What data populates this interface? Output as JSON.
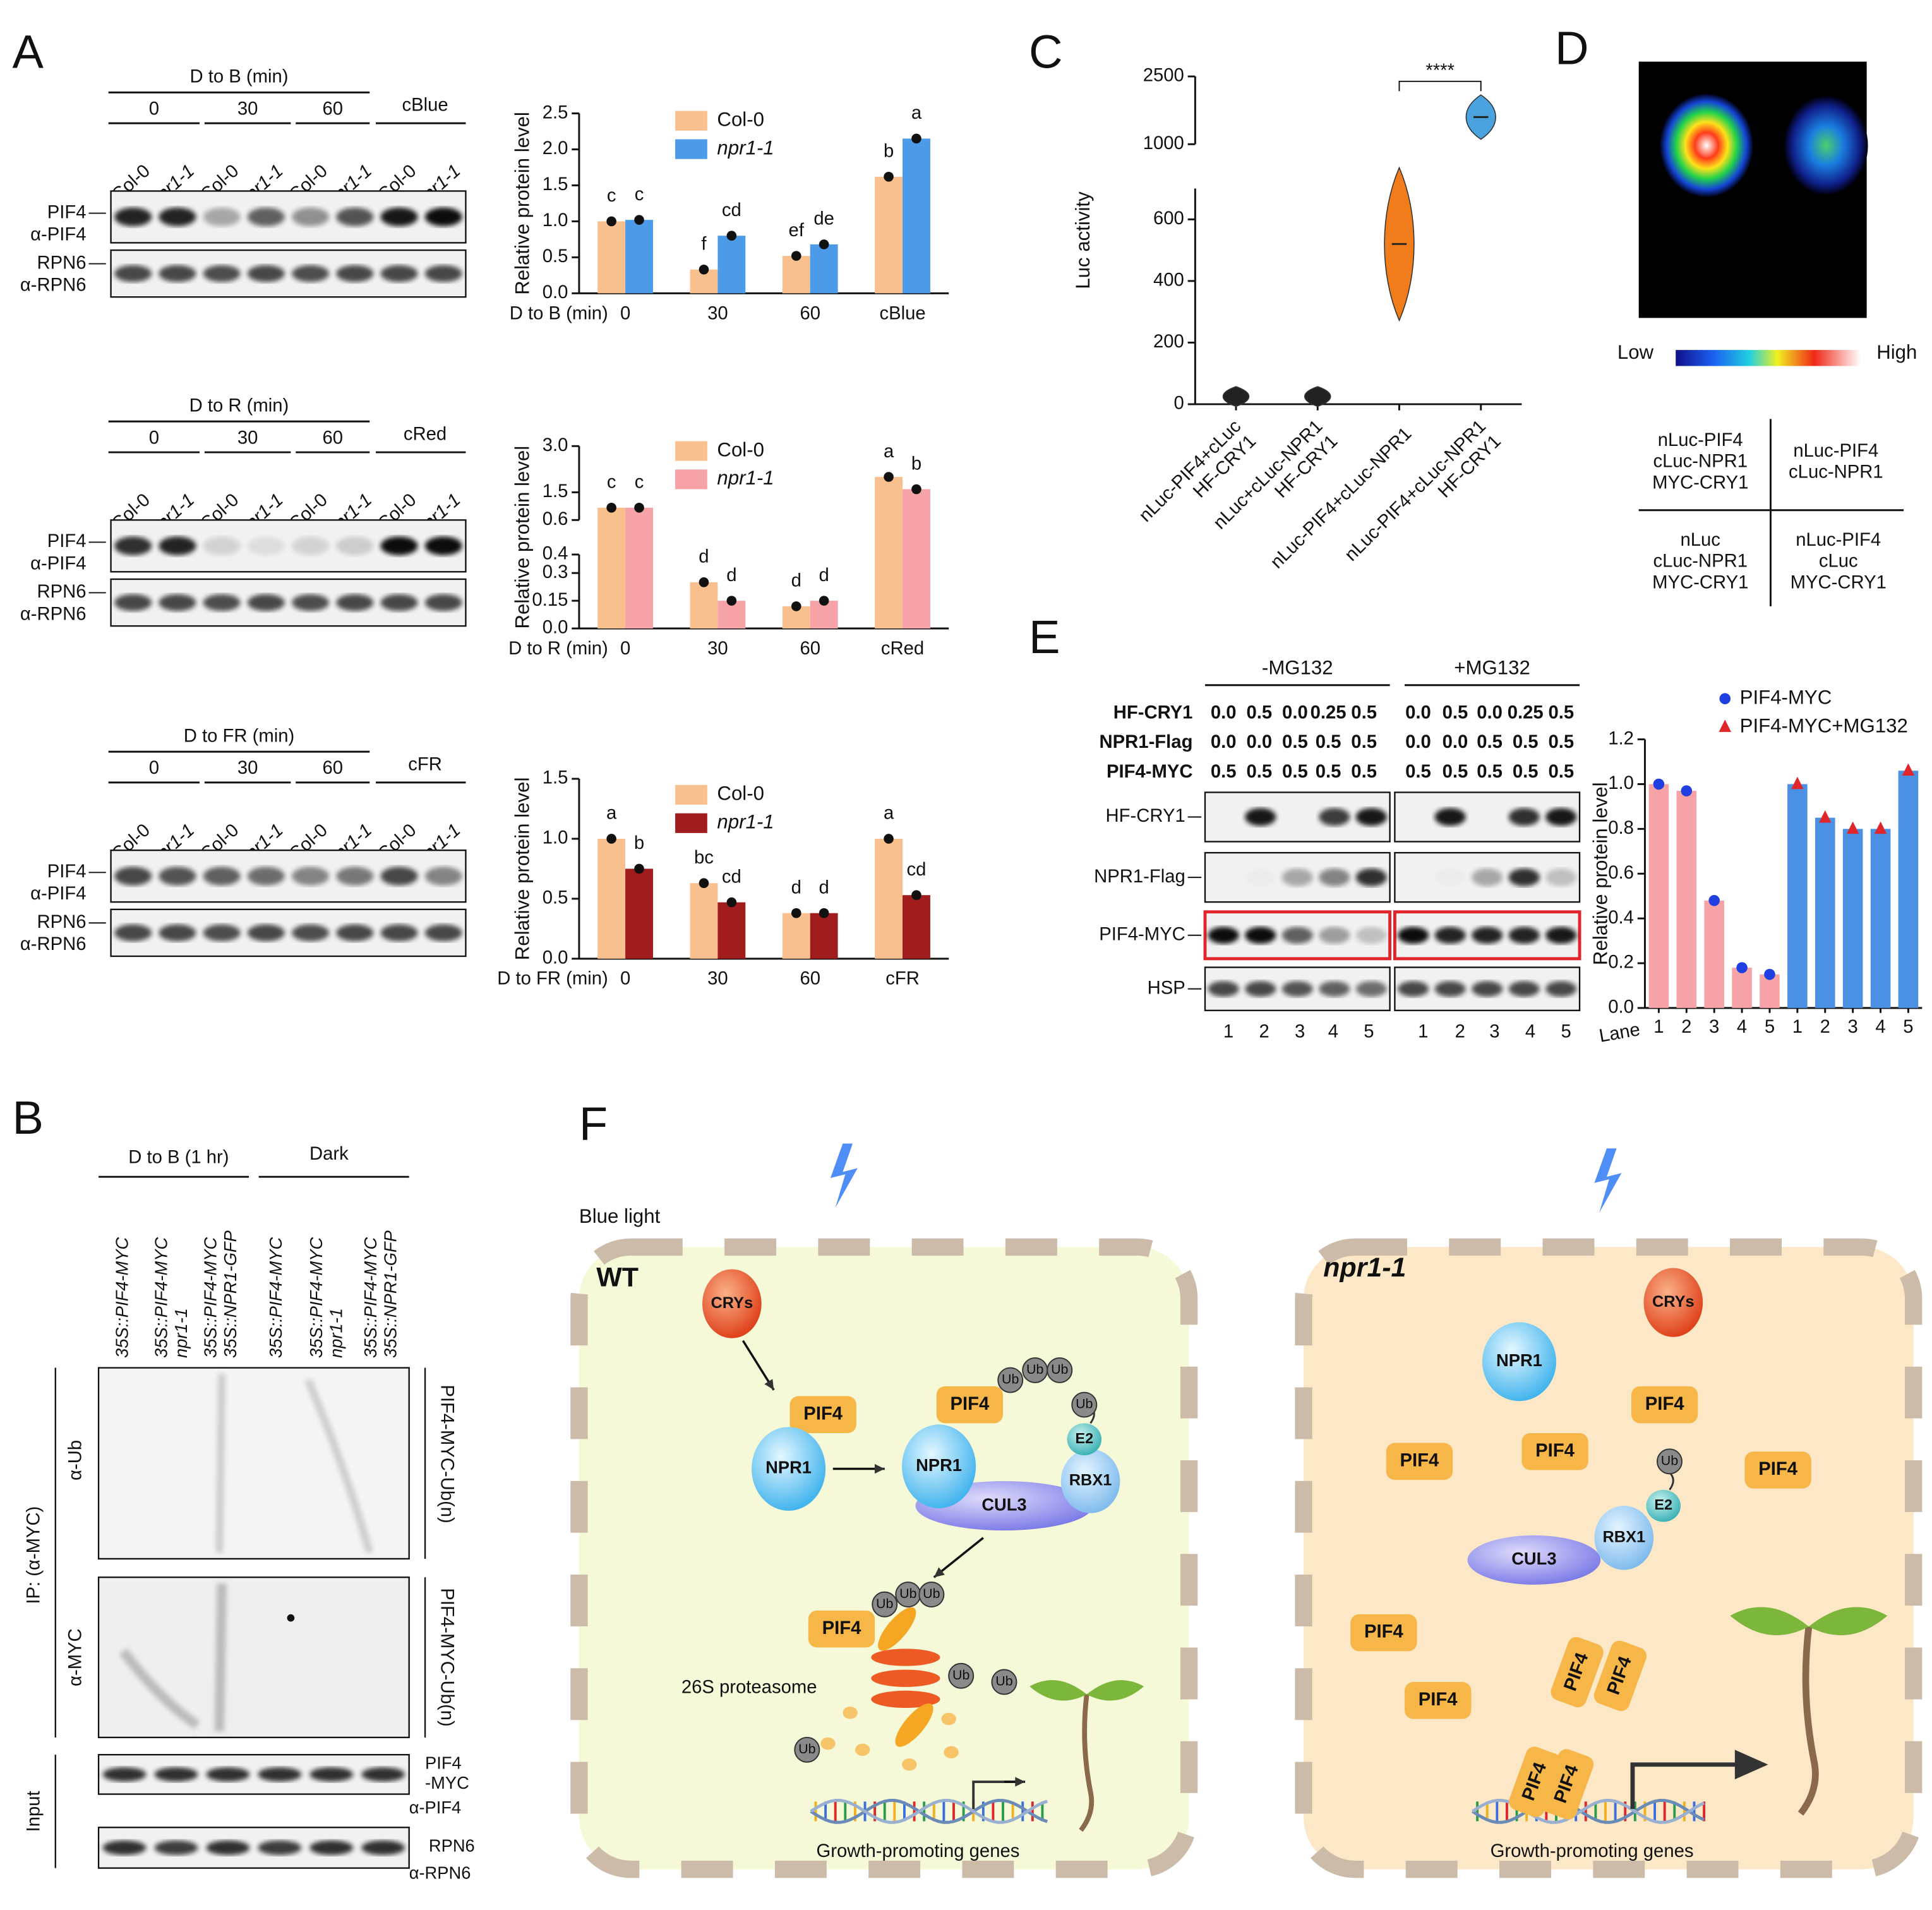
{
  "panel_labels": {
    "a": "A",
    "b": "B",
    "c": "C",
    "d": "D",
    "e": "E",
    "f": "F"
  },
  "blots_a": [
    {
      "treatment": "D to B (min)",
      "times": [
        "0",
        "30",
        "60"
      ],
      "continuous": "cBlue",
      "lanes": [
        "Col-0",
        "npr1-1",
        "Col-0",
        "npr1-1",
        "Col-0",
        "npr1-1",
        "Col-0",
        "npr1-1"
      ],
      "target": "PIF4",
      "target_antibody": "α-PIF4",
      "control": "RPN6",
      "control_antibody": "α-RPN6"
    },
    {
      "treatment": "D to R (min)",
      "times": [
        "0",
        "30",
        "60"
      ],
      "continuous": "cRed",
      "lanes": [
        "Col-0",
        "npr1-1",
        "Col-0",
        "npr1-1",
        "Col-0",
        "npr1-1",
        "Col-0",
        "npr1-1"
      ],
      "target": "PIF4",
      "target_antibody": "α-PIF4",
      "control": "RPN6",
      "control_antibody": "α-RPN6"
    },
    {
      "treatment": "D to FR (min)",
      "times": [
        "0",
        "30",
        "60"
      ],
      "continuous": "cFR",
      "lanes": [
        "Col-0",
        "npr1-1",
        "Col-0",
        "npr1-1",
        "Col-0",
        "npr1-1",
        "Col-0",
        "npr1-1"
      ],
      "target": "PIF4",
      "target_antibody": "α-PIF4",
      "control": "RPN6",
      "control_antibody": "α-RPN6"
    }
  ],
  "chart_data": [
    {
      "type": "bar",
      "grouping": "by_category",
      "y_label": "Relative protein level",
      "x_label": "D to B (min)",
      "categories": [
        "0",
        "30",
        "60",
        "cBlue"
      ],
      "series": [
        {
          "name": "Col-0",
          "color": "#f9c08f",
          "values": [
            1.0,
            0.33,
            0.52,
            1.62
          ],
          "letters": [
            "c",
            "f",
            "ef",
            "b"
          ]
        },
        {
          "name": "npr1-1",
          "color": "#4b9be8",
          "values": [
            1.02,
            0.8,
            0.68,
            2.15
          ],
          "letters": [
            "c",
            "cd",
            "de",
            "a"
          ]
        }
      ],
      "ylim": [
        0,
        2.5
      ],
      "yticks": [
        {
          "value": 0,
          "label": "0.0"
        },
        0.5,
        {
          "value": 1,
          "label": "1.0"
        },
        1.5,
        {
          "value": 2,
          "label": "2.0"
        },
        2.5
      ]
    },
    {
      "type": "bar",
      "grouping": "by_category",
      "y_label": "Relative protein level",
      "x_label": "D to R (min)",
      "categories": [
        "0",
        "30",
        "60",
        "cRed"
      ],
      "series": [
        {
          "name": "Col-0",
          "color": "#f9c08f",
          "values": [
            1.0,
            0.25,
            0.12,
            2.0
          ],
          "letters": [
            "c",
            "d",
            "d",
            "a"
          ]
        },
        {
          "name": "npr1-1",
          "color": "#f6a3a8",
          "values": [
            1.0,
            0.15,
            0.15,
            1.6
          ],
          "letters": [
            "c",
            "d",
            "d",
            "b"
          ]
        }
      ],
      "ylim": [
        0,
        3
      ],
      "ybreak": [
        0.4,
        0.6
      ],
      "yticks": [
        {
          "value": 0,
          "label": "0.0"
        },
        0.15,
        0.3,
        0.4,
        0.6,
        1.5,
        {
          "value": 3,
          "label": "3.0"
        }
      ]
    },
    {
      "type": "bar",
      "grouping": "by_category",
      "y_label": "Relative protein level",
      "x_label": "D to FR (min)",
      "categories": [
        "0",
        "30",
        "60",
        "cFR"
      ],
      "series": [
        {
          "name": "Col-0",
          "color": "#f9c08f",
          "values": [
            1.0,
            0.63,
            0.38,
            1.0
          ],
          "letters": [
            "a",
            "bc",
            "d",
            "a"
          ]
        },
        {
          "name": "npr1-1",
          "color": "#a11c1c",
          "values": [
            0.75,
            0.47,
            0.38,
            0.53
          ],
          "letters": [
            "b",
            "cd",
            "d",
            "cd"
          ]
        }
      ],
      "ylim": [
        0,
        1.5
      ],
      "yticks": [
        {
          "value": 0,
          "label": "0.0"
        },
        0.5,
        {
          "value": 1,
          "label": "1.0"
        },
        1.5
      ]
    },
    {
      "type": "violin",
      "y_label": "Luc activity",
      "categories": [
        "nLuc-PIF4+cLuc\nHF-CRY1",
        "nLuc+cLuc-NPR1\nHF-CRY1",
        "nLuc-PIF4+cLuc-NPR1",
        "nLuc-PIF4+cLuc-NPR1\nHF-CRY1"
      ],
      "values": [
        25,
        25,
        520,
        1600
      ],
      "colors": [
        "#222222",
        "#222222",
        "#f07c1c",
        "#4aa3df"
      ],
      "ylim": [
        0,
        2500
      ],
      "ybreak": [
        700,
        1000
      ],
      "yticks": [
        0,
        200,
        400,
        600,
        1000,
        2500
      ],
      "significance": "****"
    },
    {
      "type": "bar",
      "grouping": "by_series",
      "y_label": "Relative protein level",
      "x_label": "Lane",
      "categories": [
        "1",
        "2",
        "3",
        "4",
        "5"
      ],
      "series": [
        {
          "name": "PIF4-MYC",
          "color": "#f6a3a8",
          "marker": "circle",
          "marker_color": "#1f3fe0",
          "values": [
            1.0,
            0.97,
            0.48,
            0.18,
            0.15
          ]
        },
        {
          "name": "PIF4-MYC+MG132",
          "color": "#4b90e2",
          "marker": "triangle",
          "marker_color": "#e0262a",
          "values": [
            1.0,
            0.85,
            0.8,
            0.8,
            1.06
          ]
        }
      ],
      "ylim": [
        0,
        1.2
      ],
      "yticks": [
        {
          "value": 0,
          "label": "0.0"
        },
        0.2,
        0.4,
        0.6,
        0.8,
        {
          "value": 1,
          "label": "1.0"
        },
        1.2
      ]
    }
  ],
  "panel_b": {
    "group_light": "D to B (1 hr)",
    "group_dark": "Dark",
    "lanes": [
      "35S::PIF4-MYC",
      "35S::PIF4-MYC\nnpr1-1",
      "35S::PIF4-MYC\n35S::NPR1-GFP"
    ],
    "ip": "IP: (α-MYC)",
    "ub_antibody": "α-Ub",
    "myc_antibody": "α-MYC",
    "ubiquitinated": "PIF4-MYC-Ub(n)",
    "input": "Input",
    "target": "PIF4\n-MYC",
    "target_antibody": "α-PIF4",
    "control": "RPN6",
    "control_antibody": "α-RPN6"
  },
  "panel_d": {
    "low": "Low",
    "high": "High",
    "table": [
      [
        "nLuc-PIF4\ncLuc-NPR1\nMYC-CRY1",
        "nLuc-PIF4\ncLuc-NPR1"
      ],
      [
        "nLuc\ncLuc-NPR1\nMYC-CRY1",
        "nLuc-PIF4\ncLuc\nMYC-CRY1"
      ]
    ]
  },
  "panel_e": {
    "conditions": [
      "-MG132",
      "+MG132"
    ],
    "rows": [
      {
        "name": "HF-CRY1",
        "amounts": [
          "0.0",
          "0.5",
          "0.0",
          "0.25",
          "0.5"
        ]
      },
      {
        "name": "NPR1-Flag",
        "amounts": [
          "0.0",
          "0.0",
          "0.5",
          "0.5",
          "0.5"
        ]
      },
      {
        "name": "PIF4-MYC",
        "amounts": [
          "0.5",
          "0.5",
          "0.5",
          "0.5",
          "0.5"
        ]
      }
    ],
    "bands": [
      "HF-CRY1",
      "NPR1-Flag",
      "PIF4-MYC",
      "HSP"
    ],
    "lanes": [
      "1",
      "2",
      "3",
      "4",
      "5"
    ]
  },
  "diagram": {
    "blue_light": "Blue light",
    "wt": "WT",
    "mutant": "npr1-1",
    "crys": "CRYs",
    "pif4": "PIF4",
    "npr1": "NPR1",
    "cul3": "CUL3",
    "rbx1": "RBX1",
    "e2": "E2",
    "ub": "Ub",
    "proteasome": "26S proteasome",
    "genes": "Growth-promoting genes"
  }
}
